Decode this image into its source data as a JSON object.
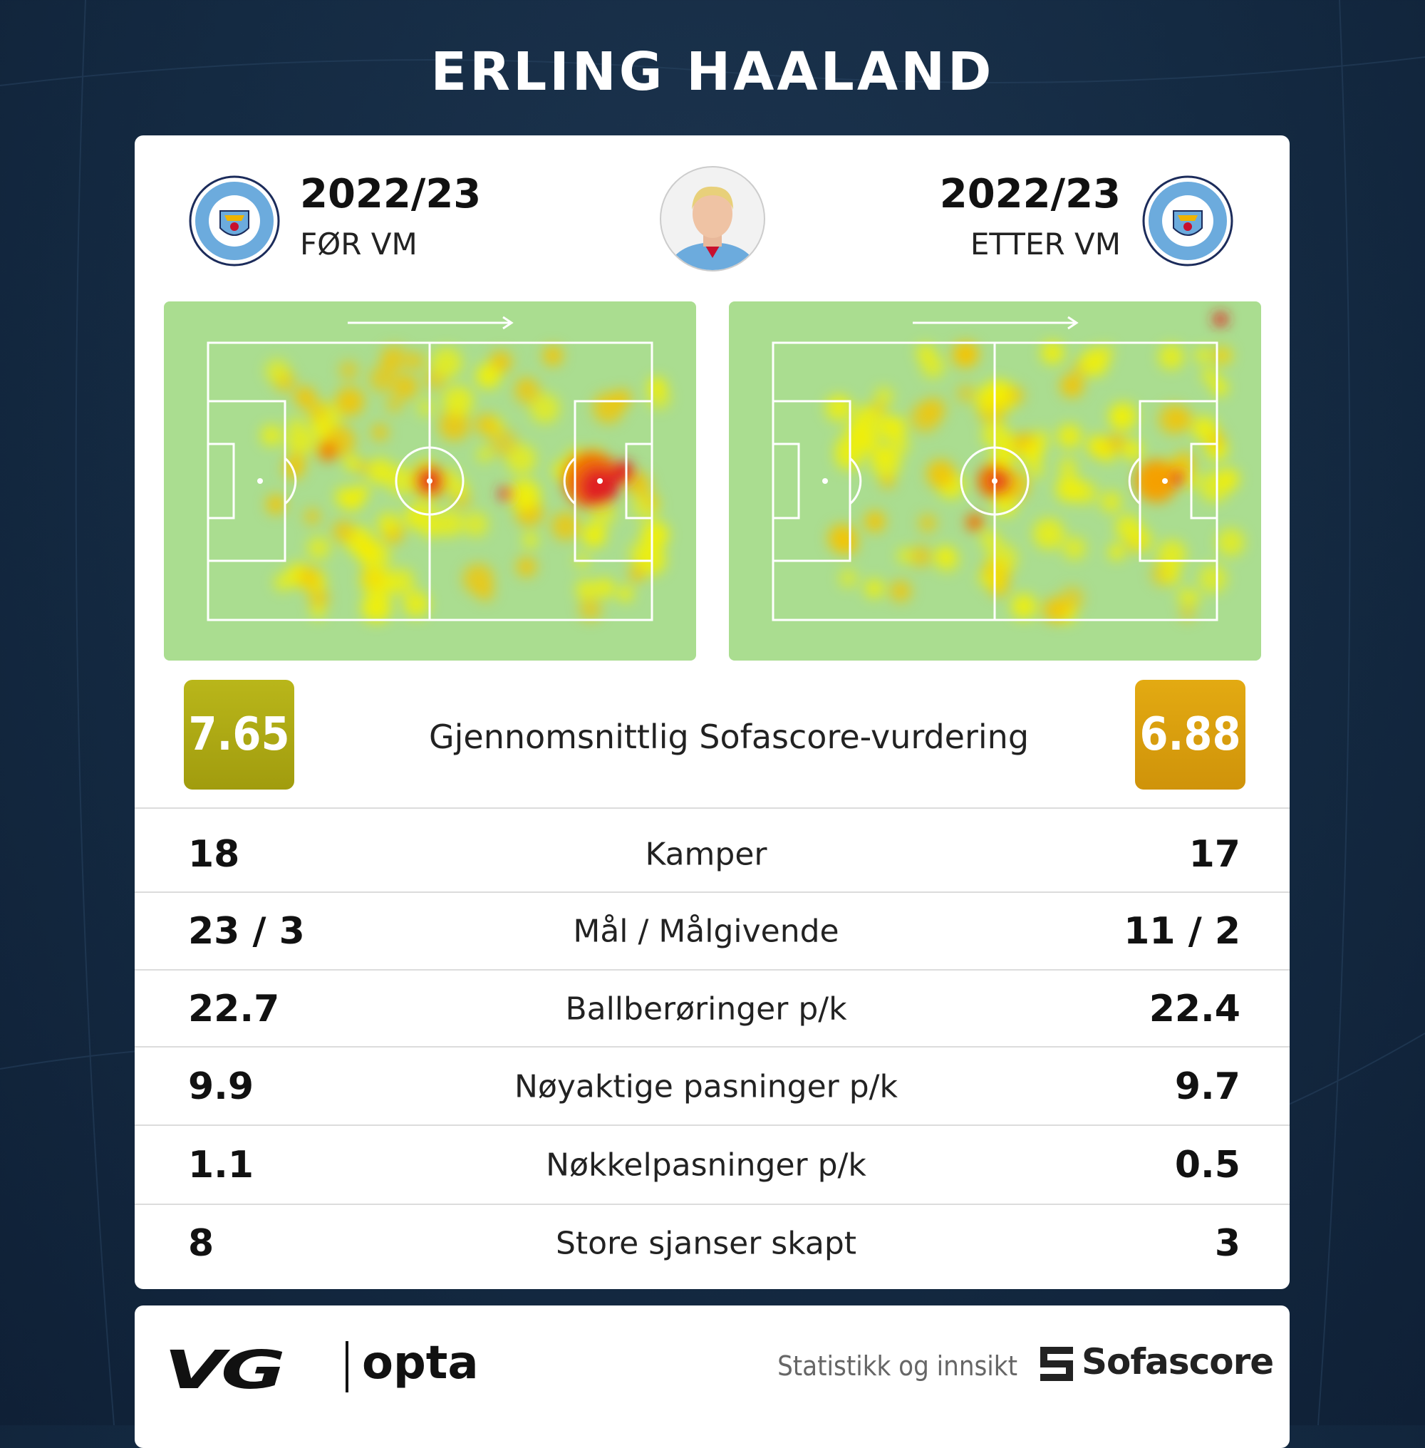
{
  "header": {
    "title": "ERLING HAALAND"
  },
  "left": {
    "season": "2022/23",
    "label": "FØR VM",
    "rating": "7.65"
  },
  "right": {
    "season": "2022/23",
    "label": "ETTER VM",
    "rating": "6.88"
  },
  "rating_label": "Gjennomsnittlig Sofascore-vurdering",
  "stats": [
    {
      "left": "18",
      "label": "Kamper",
      "right": "17"
    },
    {
      "left": "23 / 3",
      "label": "Mål / Målgivende",
      "right": "11 / 2"
    },
    {
      "left": "22.7",
      "label": "Ballberøringer p/k",
      "right": "22.4"
    },
    {
      "left": "9.9",
      "label": "Nøyaktige pasninger p/k",
      "right": "9.7"
    },
    {
      "left": "1.1",
      "label": "Nøkkelpasninger p/k",
      "right": "0.5"
    },
    {
      "left": "8",
      "label": "Store sjanser skapt",
      "right": "3"
    }
  ],
  "footer": {
    "brand": "VG",
    "partner": "opta",
    "tagline": "Statistikk og innsikt",
    "provider": "Sofascore"
  }
}
